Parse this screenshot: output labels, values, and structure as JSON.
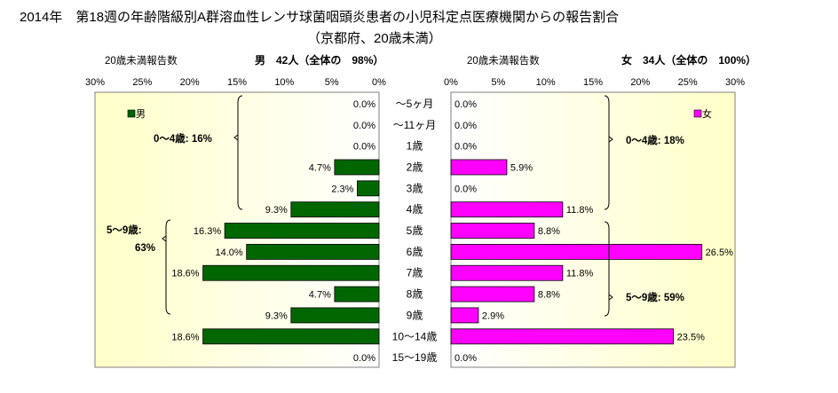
{
  "title": {
    "line1": "2014年　第18週の年齢階級別A群溶血性レンサ球菌咽頭炎患者の小児科定点医療機関からの報告割合",
    "line2": "（京都府、20歳未満）"
  },
  "headers": {
    "left_caption": "20歳未満報告数",
    "left_summary": "男　42人（全体の　98%）",
    "right_caption": "20歳未満報告数",
    "right_summary": "女　34人（全体の　100%）"
  },
  "chart_data": {
    "type": "bar",
    "orientation": "horizontal-butterfly",
    "categories": [
      "〜5ヶ月",
      "〜11ヶ月",
      "1歳",
      "2歳",
      "3歳",
      "4歳",
      "5歳",
      "6歳",
      "7歳",
      "8歳",
      "9歳",
      "10〜14歳",
      "15〜19歳"
    ],
    "series": [
      {
        "name": "男",
        "color": "#006600",
        "side": "left",
        "values": [
          0.0,
          0.0,
          0.0,
          4.7,
          2.3,
          9.3,
          16.3,
          14.0,
          18.6,
          4.7,
          9.3,
          18.6,
          0.0
        ],
        "labels": [
          "0.0%",
          "0.0%",
          "0.0%",
          "4.7%",
          "2.3%",
          "9.3%",
          "16.3%",
          "14.0%",
          "18.6%",
          "4.7%",
          "9.3%",
          "18.6%",
          "0.0%"
        ]
      },
      {
        "name": "女",
        "color": "#ff00ff",
        "side": "right",
        "values": [
          0.0,
          0.0,
          0.0,
          5.9,
          0.0,
          11.8,
          8.8,
          26.5,
          11.8,
          8.8,
          2.9,
          23.5,
          0.0
        ],
        "labels": [
          "0.0%",
          "0.0%",
          "0.0%",
          "5.9%",
          "0.0%",
          "11.8%",
          "8.8%",
          "26.5%",
          "11.8%",
          "8.8%",
          "2.9%",
          "23.5%",
          "0.0%"
        ]
      }
    ],
    "xlim": [
      0,
      30
    ],
    "ticks": [
      0,
      5,
      10,
      15,
      20,
      25,
      30
    ],
    "tick_labels": [
      "0%",
      "5%",
      "10%",
      "15%",
      "20%",
      "25%",
      "30%"
    ],
    "gridlines": false,
    "background": "yellow-gradient",
    "legend": {
      "left": "男",
      "right": "女",
      "placement": "top-corner"
    },
    "annotations": {
      "male_0_4": "0〜4歳: 16%",
      "male_5_9_a": "5〜9歳:",
      "male_5_9_b": "63%",
      "female_0_4": "0〜4歳: 18%",
      "female_5_9": "5〜9歳: 59%"
    }
  }
}
